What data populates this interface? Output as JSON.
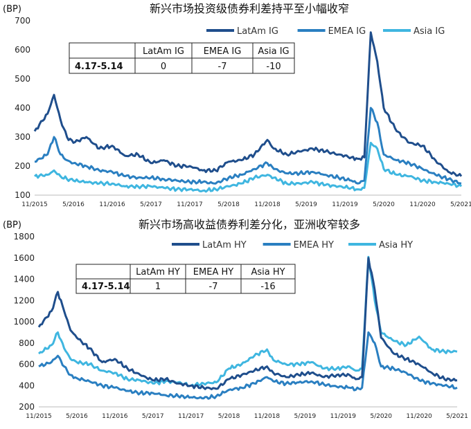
{
  "chart_data": [
    {
      "type": "line",
      "title": "新兴市场投资级债券利差持平至小幅收窄",
      "ylabel": "(BP)",
      "ylim": [
        100,
        700
      ],
      "yticks": [
        100,
        200,
        300,
        400,
        500,
        600,
        700
      ],
      "xlim": [
        "2015-11",
        "2021-05"
      ],
      "xticks": [
        "11/2015",
        "5/2016",
        "11/2016",
        "5/2017",
        "11/2017",
        "5/2018",
        "11/2018",
        "5/2019",
        "11/2019",
        "5/2020",
        "11/2020",
        "5/2021"
      ],
      "legend_position": "top-right",
      "series": [
        {
          "name": "LatAm IG",
          "color": "#1f4e8c",
          "x": [
            "2015-11",
            "2016-01",
            "2016-02",
            "2016-03",
            "2016-04",
            "2016-05",
            "2016-07",
            "2016-09",
            "2016-11",
            "2017-01",
            "2017-03",
            "2017-05",
            "2017-07",
            "2017-09",
            "2017-11",
            "2018-01",
            "2018-03",
            "2018-05",
            "2018-07",
            "2018-09",
            "2018-11",
            "2018-12",
            "2019-02",
            "2019-04",
            "2019-06",
            "2019-08",
            "2019-10",
            "2019-12",
            "2020-01",
            "2020-02",
            "2020-03",
            "2020-04",
            "2020-05",
            "2020-07",
            "2020-09",
            "2020-11",
            "2021-01",
            "2021-03",
            "2021-05"
          ],
          "values": [
            320,
            380,
            445,
            360,
            300,
            280,
            300,
            260,
            270,
            235,
            240,
            210,
            220,
            200,
            200,
            185,
            185,
            215,
            220,
            240,
            290,
            260,
            240,
            250,
            260,
            250,
            240,
            230,
            225,
            230,
            660,
            560,
            400,
            320,
            280,
            270,
            220,
            180,
            165
          ]
        },
        {
          "name": "EMEA IG",
          "color": "#2a7fc1",
          "x": [
            "2015-11",
            "2016-01",
            "2016-02",
            "2016-03",
            "2016-04",
            "2016-05",
            "2016-07",
            "2016-09",
            "2016-11",
            "2017-01",
            "2017-03",
            "2017-05",
            "2017-07",
            "2017-09",
            "2017-11",
            "2018-01",
            "2018-03",
            "2018-05",
            "2018-07",
            "2018-09",
            "2018-11",
            "2018-12",
            "2019-02",
            "2019-04",
            "2019-06",
            "2019-08",
            "2019-10",
            "2019-12",
            "2020-01",
            "2020-02",
            "2020-03",
            "2020-04",
            "2020-05",
            "2020-07",
            "2020-09",
            "2020-11",
            "2021-01",
            "2021-03",
            "2021-05"
          ],
          "values": [
            215,
            240,
            300,
            240,
            220,
            210,
            200,
            185,
            180,
            165,
            160,
            160,
            155,
            150,
            145,
            145,
            140,
            160,
            170,
            190,
            210,
            190,
            175,
            175,
            180,
            170,
            160,
            150,
            140,
            150,
            400,
            350,
            240,
            220,
            210,
            190,
            170,
            155,
            140
          ]
        },
        {
          "name": "Asia IG",
          "color": "#3fb6e0",
          "x": [
            "2015-11",
            "2016-01",
            "2016-02",
            "2016-03",
            "2016-04",
            "2016-05",
            "2016-07",
            "2016-09",
            "2016-11",
            "2017-01",
            "2017-03",
            "2017-05",
            "2017-07",
            "2017-09",
            "2017-11",
            "2018-01",
            "2018-03",
            "2018-05",
            "2018-07",
            "2018-09",
            "2018-11",
            "2018-12",
            "2019-02",
            "2019-04",
            "2019-06",
            "2019-08",
            "2019-10",
            "2019-12",
            "2020-01",
            "2020-02",
            "2020-03",
            "2020-04",
            "2020-05",
            "2020-07",
            "2020-09",
            "2020-11",
            "2021-01",
            "2021-03",
            "2021-05"
          ],
          "values": [
            165,
            170,
            185,
            165,
            155,
            150,
            145,
            140,
            140,
            130,
            130,
            130,
            125,
            120,
            120,
            115,
            120,
            130,
            140,
            160,
            170,
            160,
            140,
            140,
            145,
            135,
            130,
            125,
            120,
            125,
            280,
            260,
            190,
            170,
            165,
            150,
            145,
            140,
            130
          ]
        }
      ],
      "table": {
        "headers": [
          "",
          "LatAm IG",
          "EMEA IG",
          "Asia IG"
        ],
        "row_label": "4.17-5.14",
        "values": [
          "0",
          "-7",
          "-10"
        ]
      }
    },
    {
      "type": "line",
      "title": "新兴市场高收益债券利差分化，亚洲收窄较多",
      "ylabel": "(BP)",
      "ylim": [
        200,
        1800
      ],
      "yticks": [
        200,
        400,
        600,
        800,
        1000,
        1200,
        1400,
        1600,
        1800
      ],
      "xlim": [
        "2015-11",
        "2021-05"
      ],
      "xticks": [
        "11/2015",
        "5/2016",
        "11/2016",
        "5/2017",
        "11/2017",
        "5/2018",
        "11/2018",
        "5/2019",
        "11/2019",
        "5/2020",
        "11/2020",
        "5/2021"
      ],
      "legend_position": "top-right",
      "series": [
        {
          "name": "LatAm HY",
          "color": "#1f4e8c",
          "x": [
            "2015-11",
            "2016-01",
            "2016-02",
            "2016-03",
            "2016-04",
            "2016-05",
            "2016-07",
            "2016-09",
            "2016-11",
            "2017-01",
            "2017-03",
            "2017-05",
            "2017-07",
            "2017-09",
            "2017-11",
            "2018-01",
            "2018-03",
            "2018-05",
            "2018-07",
            "2018-09",
            "2018-11",
            "2018-12",
            "2019-02",
            "2019-04",
            "2019-06",
            "2019-08",
            "2019-10",
            "2019-12",
            "2020-01",
            "2020-02",
            "2020-03",
            "2020-04",
            "2020-05",
            "2020-07",
            "2020-09",
            "2020-11",
            "2021-01",
            "2021-03",
            "2021-05"
          ],
          "values": [
            950,
            1100,
            1280,
            1100,
            920,
            850,
            750,
            620,
            650,
            560,
            500,
            450,
            460,
            420,
            400,
            380,
            370,
            460,
            500,
            540,
            580,
            520,
            480,
            500,
            520,
            480,
            500,
            500,
            460,
            480,
            1600,
            1300,
            850,
            700,
            650,
            600,
            520,
            460,
            450
          ]
        },
        {
          "name": "EMEA HY",
          "color": "#2a7fc1",
          "x": [
            "2015-11",
            "2016-01",
            "2016-02",
            "2016-03",
            "2016-04",
            "2016-05",
            "2016-07",
            "2016-09",
            "2016-11",
            "2017-01",
            "2017-03",
            "2017-05",
            "2017-07",
            "2017-09",
            "2017-11",
            "2018-01",
            "2018-03",
            "2018-05",
            "2018-07",
            "2018-09",
            "2018-11",
            "2018-12",
            "2019-02",
            "2019-04",
            "2019-06",
            "2019-08",
            "2019-10",
            "2019-12",
            "2020-01",
            "2020-02",
            "2020-03",
            "2020-04",
            "2020-05",
            "2020-07",
            "2020-09",
            "2020-11",
            "2021-01",
            "2021-03",
            "2021-05"
          ],
          "values": [
            580,
            620,
            680,
            580,
            500,
            470,
            440,
            400,
            380,
            350,
            330,
            330,
            310,
            300,
            290,
            280,
            300,
            360,
            380,
            420,
            480,
            440,
            420,
            430,
            440,
            410,
            390,
            380,
            360,
            380,
            900,
            800,
            580,
            560,
            520,
            450,
            420,
            400,
            380
          ]
        },
        {
          "name": "Asia HY",
          "color": "#3fb6e0",
          "x": [
            "2015-11",
            "2016-01",
            "2016-02",
            "2016-03",
            "2016-04",
            "2016-05",
            "2016-07",
            "2016-09",
            "2016-11",
            "2017-01",
            "2017-03",
            "2017-05",
            "2017-07",
            "2017-09",
            "2017-11",
            "2018-01",
            "2018-03",
            "2018-05",
            "2018-07",
            "2018-09",
            "2018-11",
            "2018-12",
            "2019-02",
            "2019-04",
            "2019-06",
            "2019-08",
            "2019-10",
            "2019-12",
            "2020-01",
            "2020-02",
            "2020-03",
            "2020-04",
            "2020-05",
            "2020-07",
            "2020-09",
            "2020-11",
            "2021-01",
            "2021-03",
            "2021-05"
          ],
          "values": [
            700,
            780,
            900,
            750,
            650,
            620,
            600,
            540,
            520,
            460,
            450,
            420,
            440,
            430,
            400,
            420,
            430,
            560,
            600,
            680,
            740,
            640,
            600,
            600,
            620,
            560,
            560,
            580,
            540,
            560,
            1610,
            1200,
            900,
            820,
            780,
            860,
            740,
            720,
            720
          ]
        }
      ],
      "table": {
        "headers": [
          "",
          "LatAm HY",
          "EMEA HY",
          "Asia HY"
        ],
        "row_label": "4.17-5.14",
        "values": [
          "1",
          "-7",
          "-16"
        ]
      }
    }
  ]
}
